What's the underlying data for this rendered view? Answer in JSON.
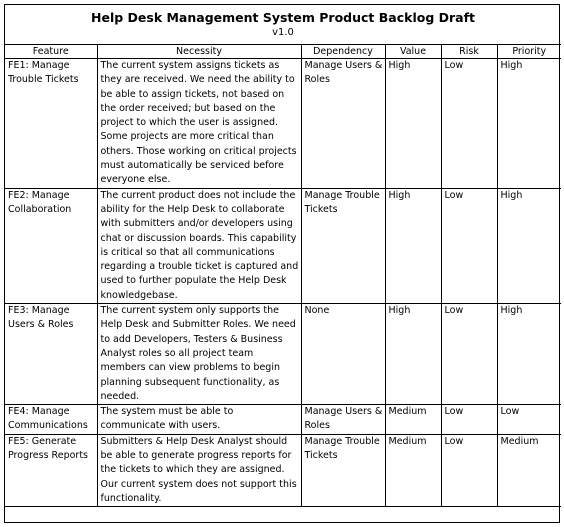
{
  "document": {
    "title": "Help Desk Management System Product Backlog  Draft",
    "version": "v1.0"
  },
  "columns": [
    "Feature",
    "Necessity",
    "Dependency",
    "Value",
    "Risk",
    "Priority"
  ],
  "rows": [
    {
      "feature": "FE1: Manage Trouble Tickets",
      "necessity": "The current system assigns tickets as they are received. We need the ability to be able to assign tickets, not based on the order received; but based on the project to which the user is assigned. Some projects are more critical than others. Those working on critical projects must automatically be serviced before everyone  else.",
      "dependency": "Manage Users & Roles",
      "value": "High",
      "risk": "Low",
      "priority": "High"
    },
    {
      "feature": "FE2: Manage Collaboration",
      "necessity": "The current product  does not include the ability for the Help Desk to collaborate with submitters and/or developers using chat or discussion boards. This capability is critical so that all communications regarding a trouble ticket is captured and used to further populate the Help Desk knowledgebase.",
      "dependency": "Manage Trouble Tickets",
      "value": "High",
      "risk": "Low",
      "priority": "High"
    },
    {
      "feature": "FE3: Manage Users & Roles",
      "necessity": "The current system only supports the Help Desk and Submitter Roles. We need to add Developers, Testers & Business Analyst roles so all project team members can view problems to begin planning subsequent functionality, as needed.",
      "dependency": "None",
      "value": "High",
      "risk": "Low",
      "priority": "High"
    },
    {
      "feature": "FE4: Manage Communications",
      "necessity": "The system must be able to communicate with users.",
      "dependency": "Manage Users & Roles",
      "value": "Medium",
      "risk": "Low",
      "priority": "Low"
    },
    {
      "feature": "FE5: Generate Progress Reports",
      "necessity": "Submitters & Help Desk Analyst should be able to generate progress reports for the tickets to which they are assigned. Our current system does not support this functionality.",
      "dependency": "Manage Trouble Tickets",
      "value": "Medium",
      "risk": "Low",
      "priority": "Medium"
    }
  ]
}
